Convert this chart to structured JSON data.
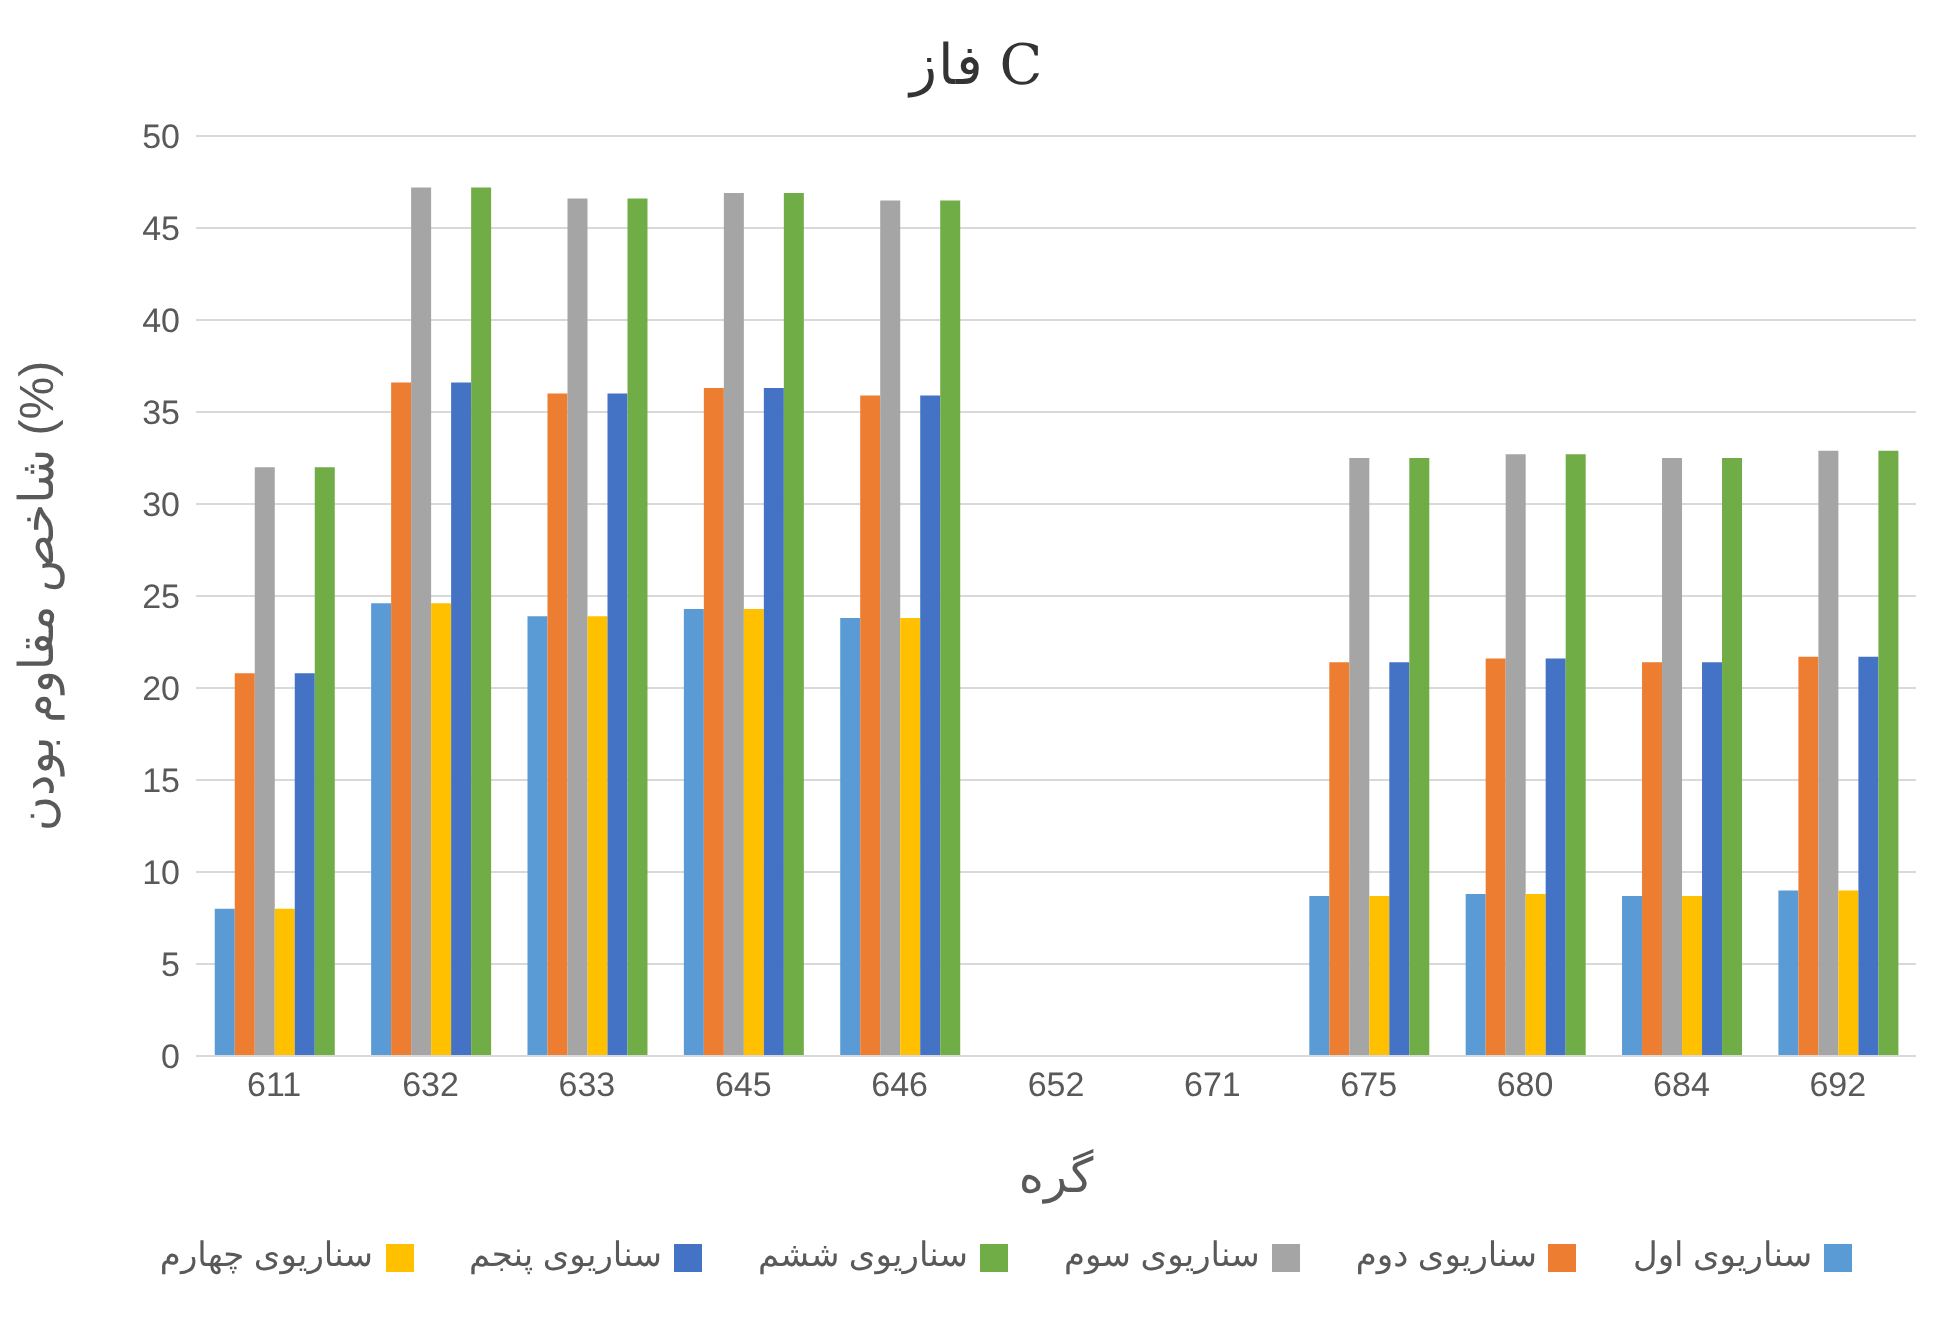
{
  "chart_data": {
    "type": "bar",
    "title": "فاز C",
    "xlabel": "گره",
    "ylabel": "شاخص مقاوم بودن (%)",
    "categories": [
      "611",
      "632",
      "633",
      "645",
      "646",
      "652",
      "671",
      "675",
      "680",
      "684",
      "692"
    ],
    "series": [
      {
        "name": "سناریوی اول",
        "color": "#5b9bd5",
        "values": [
          8.0,
          24.6,
          23.9,
          24.3,
          23.8,
          null,
          null,
          8.7,
          8.8,
          8.7,
          9.0
        ]
      },
      {
        "name": "سناریوی دوم",
        "color": "#ed7d31",
        "values": [
          20.8,
          36.6,
          36.0,
          36.3,
          35.9,
          null,
          null,
          21.4,
          21.6,
          21.4,
          21.7
        ]
      },
      {
        "name": "سناریوی سوم",
        "color": "#a5a5a5",
        "values": [
          32.0,
          47.2,
          46.6,
          46.9,
          46.5,
          null,
          null,
          32.5,
          32.7,
          32.5,
          32.9
        ]
      },
      {
        "name": "سناریوی چهارم",
        "color": "#ffc000",
        "values": [
          8.0,
          24.6,
          23.9,
          24.3,
          23.8,
          null,
          null,
          8.7,
          8.8,
          8.7,
          9.0
        ]
      },
      {
        "name": "سناریوی پنجم",
        "color": "#4472c4",
        "values": [
          20.8,
          36.6,
          36.0,
          36.3,
          35.9,
          null,
          null,
          21.4,
          21.6,
          21.4,
          21.7
        ]
      },
      {
        "name": "سناریوی ششم",
        "color": "#70ad47",
        "values": [
          32.0,
          47.2,
          46.6,
          46.9,
          46.5,
          null,
          null,
          32.5,
          32.7,
          32.5,
          32.9
        ]
      }
    ],
    "ylim": [
      0,
      50
    ],
    "yticks": [
      0,
      5,
      10,
      15,
      20,
      25,
      30,
      35,
      40,
      45,
      50
    ],
    "grid": "y",
    "legend": "bottom"
  }
}
